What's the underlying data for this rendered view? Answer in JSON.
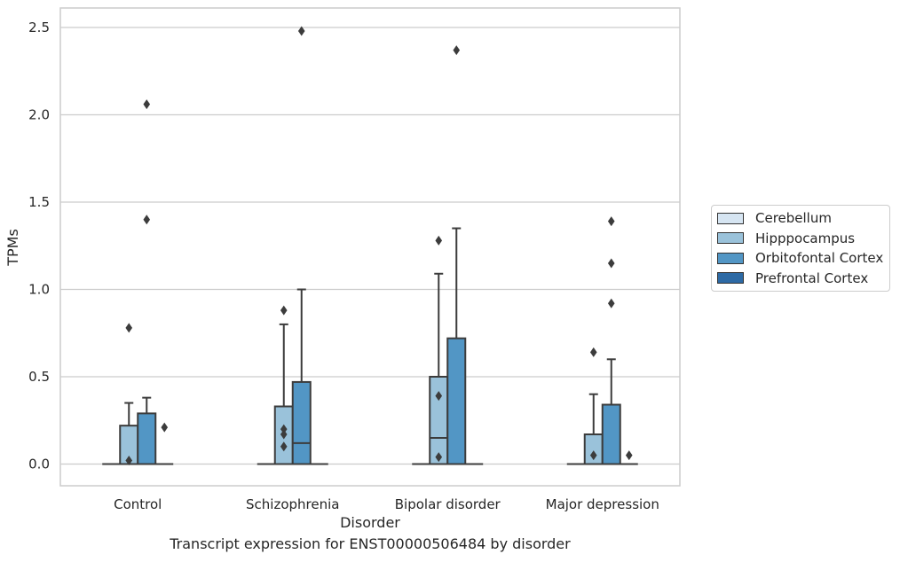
{
  "chart_data": {
    "type": "box",
    "title": "",
    "xlabel": "Disorder",
    "ylabel": "TPMs",
    "caption": "Transcript expression for ENST00000506484 by disorder",
    "ylim": [
      -0.12,
      2.62
    ],
    "yticks": [
      0.0,
      0.5,
      1.0,
      1.5,
      2.0,
      2.5
    ],
    "ytick_labels": [
      "0.0",
      "0.5",
      "1.0",
      "1.5",
      "2.0",
      "2.5"
    ],
    "categories": [
      "Control",
      "Schizophrenia",
      "Bipolar disorder",
      "Major depression"
    ],
    "grid": "horizontal",
    "legend_position": "right",
    "series": [
      {
        "name": "Cerebellum",
        "color": "#d6e5f2",
        "boxes": [
          {
            "q1": 0,
            "median": 0,
            "q3": 0,
            "whisker_low": 0,
            "whisker_high": 0,
            "outliers": []
          },
          {
            "q1": 0,
            "median": 0,
            "q3": 0,
            "whisker_low": 0,
            "whisker_high": 0,
            "outliers": []
          },
          {
            "q1": 0,
            "median": 0,
            "q3": 0,
            "whisker_low": 0,
            "whisker_high": 0,
            "outliers": []
          },
          {
            "q1": 0,
            "median": 0,
            "q3": 0,
            "whisker_low": 0,
            "whisker_high": 0,
            "outliers": []
          }
        ]
      },
      {
        "name": "Hipppocampus",
        "color": "#9ac2da",
        "boxes": [
          {
            "q1": 0,
            "median": 0,
            "q3": 0.22,
            "whisker_low": 0,
            "whisker_high": 0.35,
            "outliers": [
              0.02,
              0.78
            ]
          },
          {
            "q1": 0,
            "median": 0,
            "q3": 0.33,
            "whisker_low": 0,
            "whisker_high": 0.8,
            "outliers": [
              0.1,
              0.17,
              0.2,
              0.88
            ]
          },
          {
            "q1": 0,
            "median": 0.15,
            "q3": 0.5,
            "whisker_low": 0,
            "whisker_high": 1.09,
            "outliers": [
              0.04,
              0.39,
              1.28
            ]
          },
          {
            "q1": 0,
            "median": 0,
            "q3": 0.17,
            "whisker_low": 0,
            "whisker_high": 0.4,
            "outliers": [
              0.05,
              0.64
            ]
          }
        ]
      },
      {
        "name": "Orbitofontal Cortex",
        "color": "#5296c5",
        "boxes": [
          {
            "q1": 0,
            "median": 0,
            "q3": 0.29,
            "whisker_low": 0,
            "whisker_high": 0.38,
            "outliers": [
              1.4,
              2.06
            ]
          },
          {
            "q1": 0,
            "median": 0.12,
            "q3": 0.47,
            "whisker_low": 0,
            "whisker_high": 1.0,
            "outliers": [
              2.48
            ]
          },
          {
            "q1": 0,
            "median": 0,
            "q3": 0.72,
            "whisker_low": 0,
            "whisker_high": 1.35,
            "outliers": [
              2.37
            ]
          },
          {
            "q1": 0,
            "median": 0,
            "q3": 0.34,
            "whisker_low": 0,
            "whisker_high": 0.6,
            "outliers": [
              0.92,
              1.15,
              1.39
            ]
          }
        ]
      },
      {
        "name": "Prefrontal Cortex",
        "color": "#2d6aa5",
        "boxes": [
          {
            "q1": 0,
            "median": 0,
            "q3": 0,
            "whisker_low": 0,
            "whisker_high": 0,
            "outliers": [
              0.21
            ]
          },
          {
            "q1": 0,
            "median": 0,
            "q3": 0,
            "whisker_low": 0,
            "whisker_high": 0,
            "outliers": []
          },
          {
            "q1": 0,
            "median": 0,
            "q3": 0,
            "whisker_low": 0,
            "whisker_high": 0,
            "outliers": []
          },
          {
            "q1": 0,
            "median": 0,
            "q3": 0,
            "whisker_low": 0,
            "whisker_high": 0,
            "outliers": [
              0.05
            ]
          }
        ]
      }
    ]
  }
}
